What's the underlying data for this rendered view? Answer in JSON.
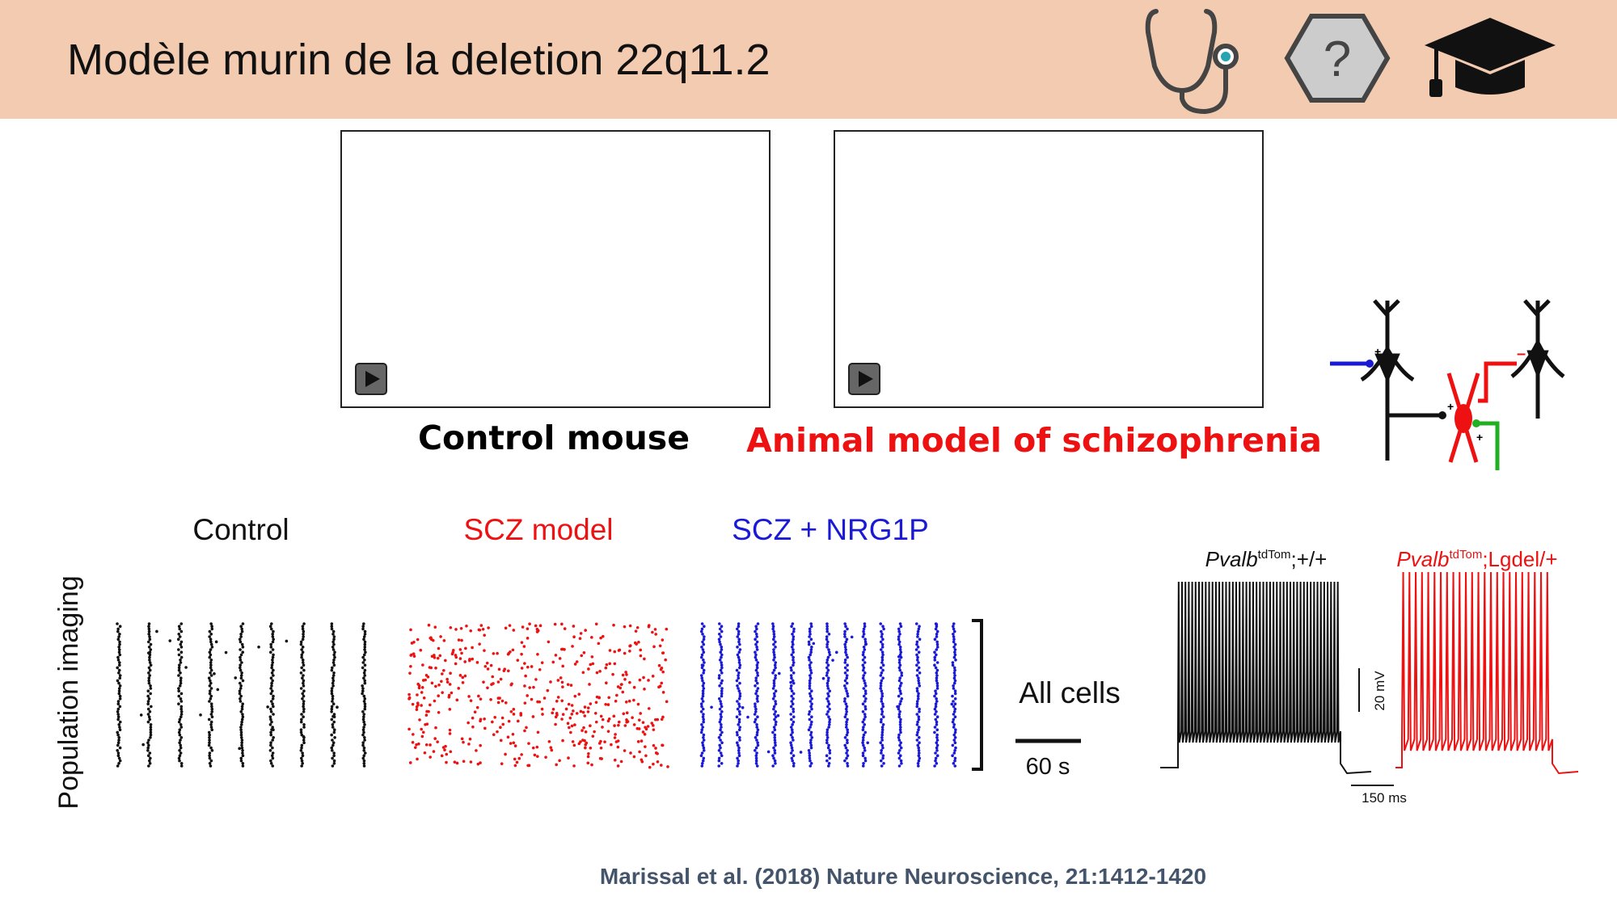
{
  "header": {
    "title": "Modèle murin de la deletion 22q11.2",
    "help_icon": "?"
  },
  "videos": [
    {
      "caption": "Control mouse"
    },
    {
      "caption": "Animal model of schizophrenia"
    }
  ],
  "circuit": {
    "signs": [
      "+",
      "+",
      "+",
      "–"
    ]
  },
  "figure": {
    "ylabel": "Population imaging",
    "groups": [
      "Control",
      "SCZ model",
      "SCZ + NRG1P"
    ],
    "bracket_label": "All cells",
    "time_scale": "60 s",
    "traces": [
      {
        "gene": "Pvalb",
        "superscript": "tdTom",
        "genotype": ";+/+"
      },
      {
        "gene": "Pvalb",
        "superscript": "tdTom",
        "genotype": ";Lgdel/+"
      }
    ],
    "voltage_scale": "20 mV",
    "duration_scale": "150 ms"
  },
  "citation": "Marissal et al. (2018) Nature Neuroscience, 21:1412-1420"
}
